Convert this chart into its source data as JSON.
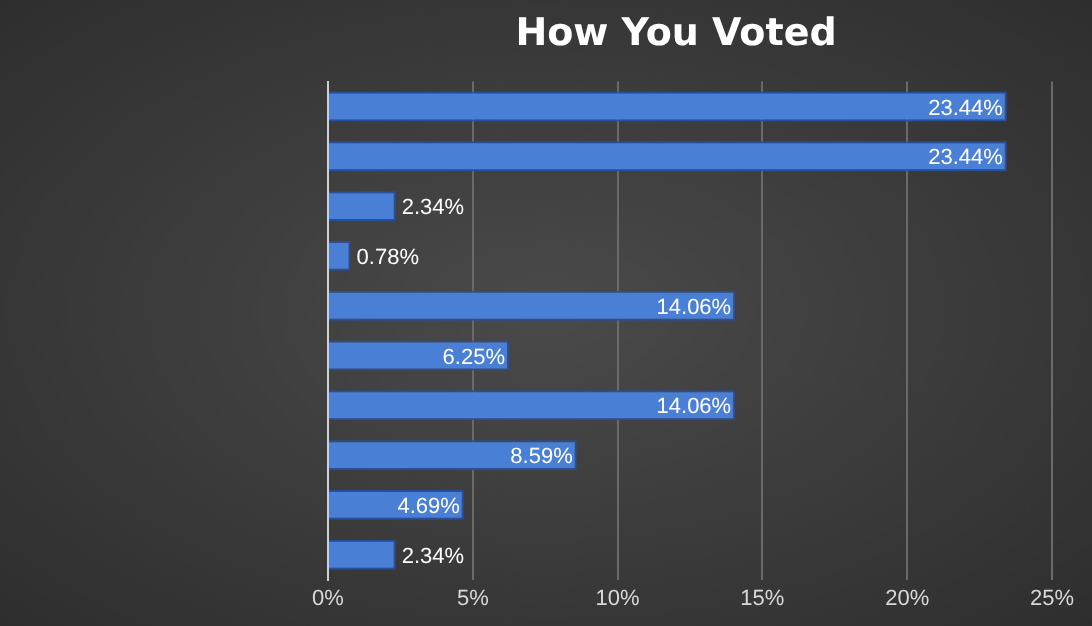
{
  "chart_data": {
    "type": "bar",
    "orientation": "horizontal",
    "title": "How You Voted",
    "categories": [
      null,
      null,
      null,
      null,
      null,
      null,
      null,
      null,
      null,
      null
    ],
    "values": [
      23.44,
      23.44,
      2.34,
      0.78,
      14.06,
      6.25,
      14.06,
      8.59,
      4.69,
      2.34
    ],
    "value_labels": [
      "23.44%",
      "23.44%",
      "2.34%",
      "0.78%",
      "14.06%",
      "6.25%",
      "14.06%",
      "8.59%",
      "4.69%",
      "2.34%"
    ],
    "color": "#4a7fd6",
    "xlim": [
      0,
      25
    ],
    "xticks": [
      {
        "value": 0,
        "label": "0%"
      },
      {
        "value": 5,
        "label": "5%"
      },
      {
        "value": 10,
        "label": "10%"
      },
      {
        "value": 15,
        "label": "15%"
      },
      {
        "value": 20,
        "label": "20%"
      },
      {
        "value": 25,
        "label": "25%"
      }
    ],
    "grid": "x"
  }
}
